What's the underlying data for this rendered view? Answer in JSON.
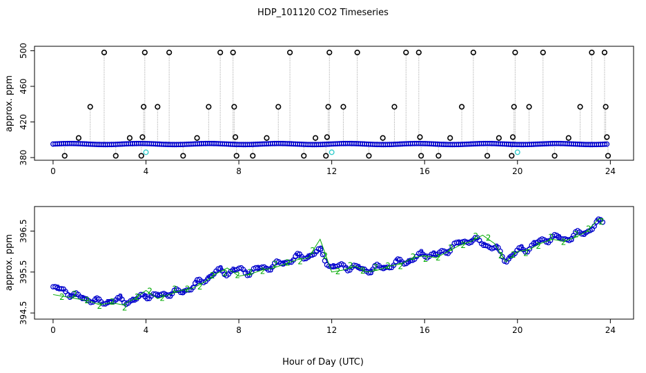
{
  "figure": {
    "title": "HDP_101120  CO2 Timeseries",
    "xlabel": "Hour of Day (UTC)"
  },
  "colors": {
    "blue": "#0000cc",
    "green": "#00aa00",
    "black": "#000000",
    "cyan": "#33cccc",
    "spike_line": "#999999"
  },
  "chart_data": [
    {
      "type": "scatter",
      "name": "top-panel",
      "ylabel": "approx. ppm",
      "xlim": [
        -0.8,
        25
      ],
      "ylim": [
        377,
        505
      ],
      "xticks": [
        0,
        4,
        8,
        12,
        16,
        20,
        24
      ],
      "yticks": [
        380,
        420,
        460,
        500
      ],
      "baseline": {
        "name": "blue circles",
        "approx_ppm": 395.5
      },
      "spikes": {
        "name": "black circles",
        "points": [
          {
            "x": 0.5,
            "y": 382
          },
          {
            "x": 1.1,
            "y": 402
          },
          {
            "x": 1.6,
            "y": 437
          },
          {
            "x": 2.2,
            "y": 498
          },
          {
            "x": 2.7,
            "y": 382
          },
          {
            "x": 3.3,
            "y": 402
          },
          {
            "x": 3.8,
            "y": 382
          },
          {
            "x": 3.85,
            "y": 403
          },
          {
            "x": 3.9,
            "y": 437
          },
          {
            "x": 3.95,
            "y": 498
          },
          {
            "x": 4.5,
            "y": 437
          },
          {
            "x": 5.0,
            "y": 498
          },
          {
            "x": 5.6,
            "y": 382
          },
          {
            "x": 6.2,
            "y": 402
          },
          {
            "x": 6.7,
            "y": 437
          },
          {
            "x": 7.2,
            "y": 498
          },
          {
            "x": 7.75,
            "y": 498
          },
          {
            "x": 7.8,
            "y": 437
          },
          {
            "x": 7.85,
            "y": 403
          },
          {
            "x": 7.9,
            "y": 382
          },
          {
            "x": 8.6,
            "y": 382
          },
          {
            "x": 9.2,
            "y": 402
          },
          {
            "x": 9.7,
            "y": 437
          },
          {
            "x": 10.2,
            "y": 498
          },
          {
            "x": 10.8,
            "y": 382
          },
          {
            "x": 11.3,
            "y": 402
          },
          {
            "x": 11.75,
            "y": 382
          },
          {
            "x": 11.8,
            "y": 403
          },
          {
            "x": 11.85,
            "y": 437
          },
          {
            "x": 11.9,
            "y": 498
          },
          {
            "x": 12.5,
            "y": 437
          },
          {
            "x": 13.1,
            "y": 498
          },
          {
            "x": 13.6,
            "y": 382
          },
          {
            "x": 14.2,
            "y": 402
          },
          {
            "x": 14.7,
            "y": 437
          },
          {
            "x": 15.2,
            "y": 498
          },
          {
            "x": 15.75,
            "y": 498
          },
          {
            "x": 15.8,
            "y": 403
          },
          {
            "x": 15.85,
            "y": 382
          },
          {
            "x": 16.6,
            "y": 382
          },
          {
            "x": 17.1,
            "y": 402
          },
          {
            "x": 17.6,
            "y": 437
          },
          {
            "x": 18.1,
            "y": 498
          },
          {
            "x": 18.7,
            "y": 382
          },
          {
            "x": 19.2,
            "y": 402
          },
          {
            "x": 19.75,
            "y": 382
          },
          {
            "x": 19.8,
            "y": 403
          },
          {
            "x": 19.85,
            "y": 437
          },
          {
            "x": 19.9,
            "y": 498
          },
          {
            "x": 20.5,
            "y": 437
          },
          {
            "x": 21.1,
            "y": 498
          },
          {
            "x": 21.6,
            "y": 382
          },
          {
            "x": 22.2,
            "y": 402
          },
          {
            "x": 22.7,
            "y": 437
          },
          {
            "x": 23.2,
            "y": 498
          },
          {
            "x": 23.75,
            "y": 498
          },
          {
            "x": 23.8,
            "y": 437
          },
          {
            "x": 23.85,
            "y": 403
          },
          {
            "x": 23.9,
            "y": 382
          }
        ]
      },
      "dips": {
        "name": "cyan circles",
        "points": [
          {
            "x": 4.0,
            "y": 386
          },
          {
            "x": 12.0,
            "y": 386
          },
          {
            "x": 20.0,
            "y": 386
          }
        ]
      }
    },
    {
      "type": "line",
      "name": "bottom-panel",
      "ylabel": "approx. ppm",
      "xlim": [
        -0.8,
        25
      ],
      "ylim": [
        394.35,
        397.1
      ],
      "xticks": [
        0,
        4,
        8,
        12,
        16,
        20,
        24
      ],
      "yticks": [
        394.5,
        395.5,
        396.5
      ],
      "series": [
        {
          "name": "3",
          "color": "blue",
          "x": [
            0,
            0.5,
            1,
            1.5,
            2,
            2.5,
            3,
            3.5,
            4,
            4.5,
            5,
            5.5,
            6,
            6.5,
            7,
            7.5,
            8,
            8.5,
            9,
            9.5,
            10,
            10.5,
            11,
            11.5,
            12,
            12.5,
            13,
            13.5,
            14,
            14.5,
            15,
            15.5,
            16,
            16.5,
            17,
            17.5,
            18,
            18.5,
            19,
            19.5,
            20,
            20.5,
            21,
            21.5,
            22,
            22.5,
            23,
            23.5,
            23.7
          ],
          "y": [
            395.1,
            395.05,
            394.9,
            394.85,
            394.75,
            394.8,
            394.8,
            394.8,
            394.95,
            394.9,
            395.0,
            395.0,
            395.15,
            395.3,
            395.5,
            395.5,
            395.55,
            395.5,
            395.6,
            395.65,
            395.75,
            395.85,
            395.9,
            396.0,
            395.6,
            395.65,
            395.6,
            395.55,
            395.6,
            395.65,
            395.75,
            395.8,
            395.95,
            395.9,
            396.05,
            396.2,
            396.3,
            396.2,
            396.1,
            395.8,
            396.0,
            396.1,
            396.25,
            396.35,
            396.3,
            396.4,
            396.5,
            396.7,
            396.75
          ]
        },
        {
          "name": "2",
          "color": "green",
          "x": [
            0,
            0.5,
            1,
            1.5,
            2,
            2.5,
            3,
            3.5,
            4,
            4.5,
            5,
            5.5,
            6,
            6.5,
            7,
            7.5,
            8,
            8.5,
            9,
            9.5,
            10,
            10.5,
            11,
            11.5,
            12,
            12.5,
            13,
            13.5,
            14,
            14.5,
            15,
            15.5,
            16,
            16.5,
            17,
            17.5,
            18,
            18.5,
            19,
            19.5,
            20,
            20.5,
            21,
            21.5,
            22,
            22.5,
            23,
            23.5,
            23.7
          ],
          "y": [
            394.95,
            394.9,
            394.85,
            394.8,
            394.7,
            394.75,
            394.7,
            394.85,
            395.05,
            394.85,
            394.95,
            395.05,
            395.1,
            395.25,
            395.45,
            395.6,
            395.4,
            395.45,
            395.55,
            395.6,
            395.7,
            395.8,
            395.85,
            396.3,
            395.5,
            395.55,
            395.65,
            395.5,
            395.55,
            395.65,
            395.7,
            395.85,
            395.9,
            395.85,
            396.0,
            396.15,
            396.25,
            396.4,
            396.2,
            395.75,
            396.0,
            396.05,
            396.2,
            396.3,
            396.25,
            396.35,
            396.5,
            396.8,
            396.8
          ]
        }
      ]
    }
  ]
}
